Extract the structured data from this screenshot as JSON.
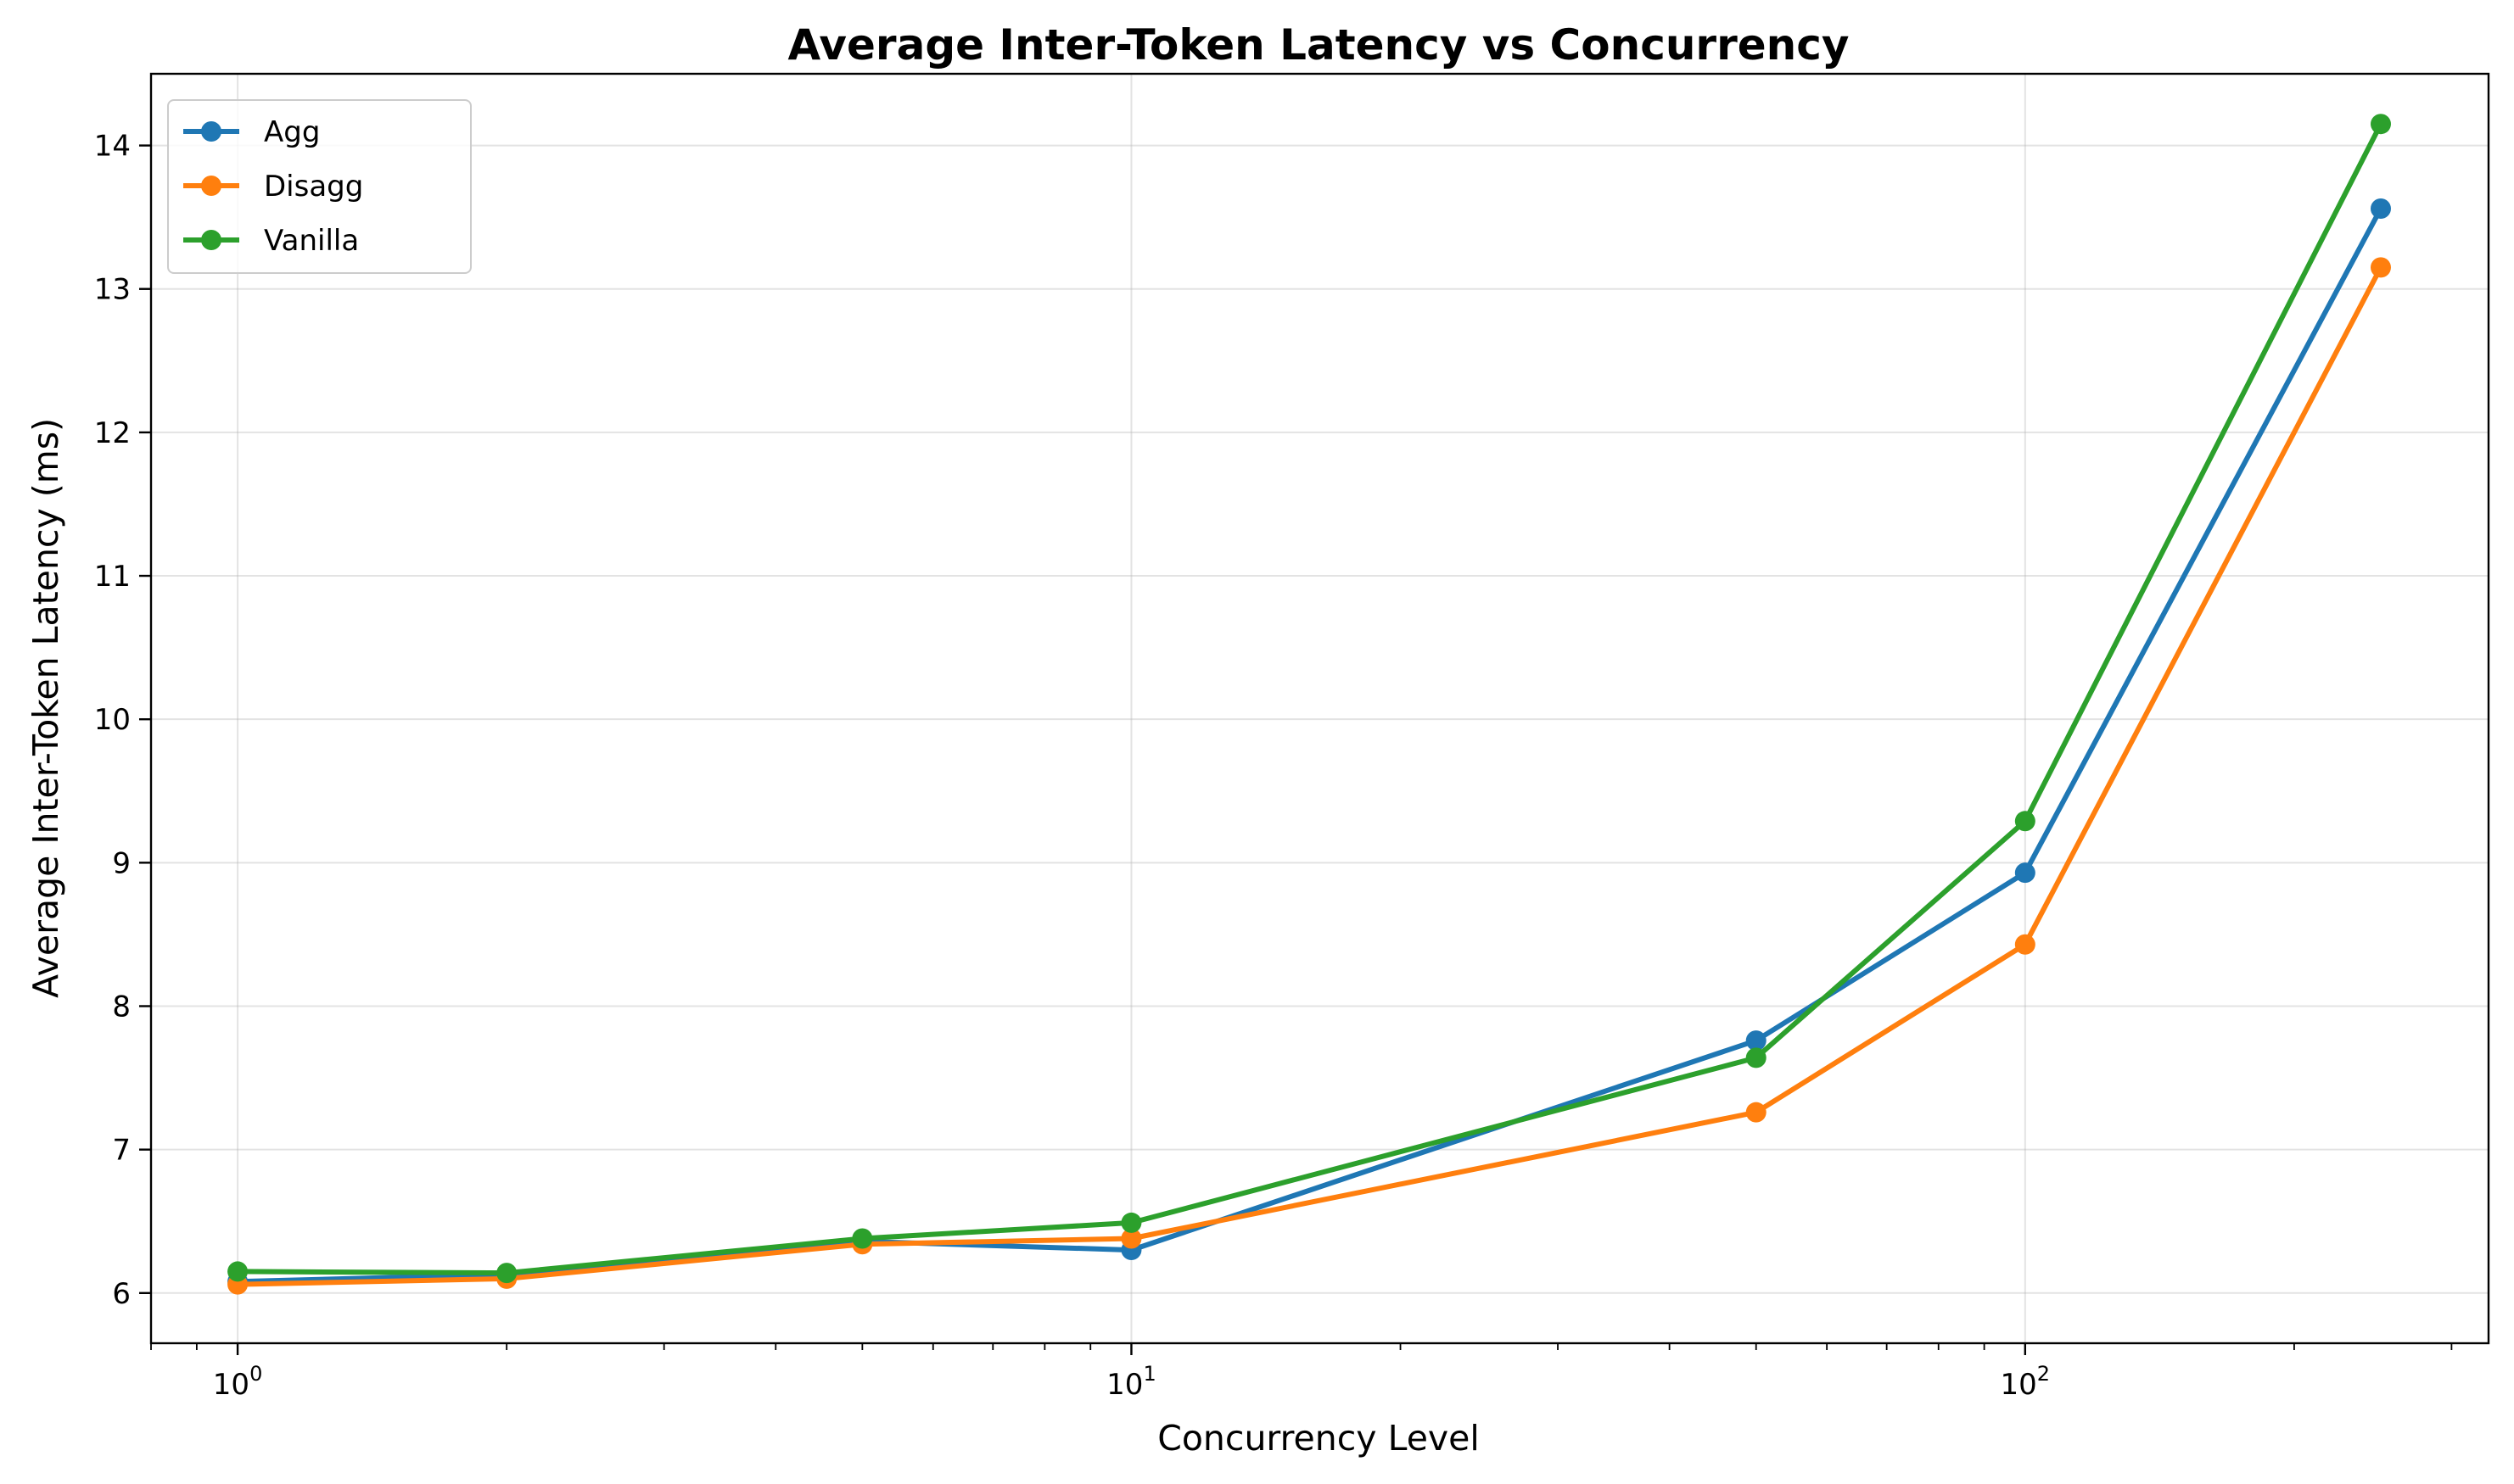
{
  "chart_data": {
    "type": "line",
    "title": "Average Inter-Token Latency vs Concurrency",
    "xlabel": "Concurrency Level",
    "ylabel": "Average Inter-Token Latency (ms)",
    "xscale": "log",
    "xlim": [
      0.8,
      330
    ],
    "ylim": [
      5.65,
      14.5
    ],
    "x_major_ticks": [
      1,
      10,
      100
    ],
    "x_major_tick_labels": [
      {
        "base": "10",
        "exp": "0"
      },
      {
        "base": "10",
        "exp": "1"
      },
      {
        "base": "10",
        "exp": "2"
      }
    ],
    "y_ticks": [
      6,
      7,
      8,
      9,
      10,
      11,
      12,
      13,
      14
    ],
    "grid": true,
    "legend_position": "upper-left",
    "x": [
      1,
      2,
      5,
      10,
      50,
      100,
      250
    ],
    "series": [
      {
        "name": "Agg",
        "color": "#1f77b4",
        "values": [
          6.08,
          6.13,
          6.36,
          6.3,
          7.76,
          8.93,
          13.56
        ]
      },
      {
        "name": "Disagg",
        "color": "#ff7f0e",
        "values": [
          6.06,
          6.1,
          6.34,
          6.38,
          7.26,
          8.43,
          13.15
        ]
      },
      {
        "name": "Vanilla",
        "color": "#2ca02c",
        "values": [
          6.15,
          6.14,
          6.38,
          6.49,
          7.64,
          9.29,
          14.15
        ]
      }
    ]
  }
}
